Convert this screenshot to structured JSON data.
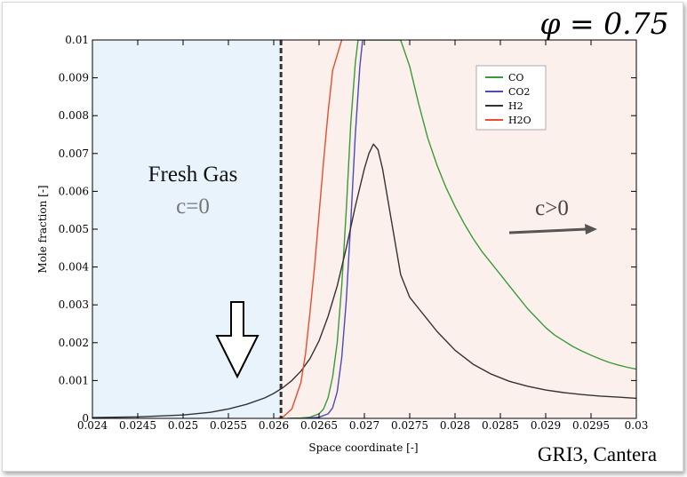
{
  "chart_data": {
    "type": "line",
    "title": "",
    "xlabel": "Space coordinate [-]",
    "ylabel": "Mole fraction [-]",
    "xlim": [
      0.024,
      0.03
    ],
    "ylim": [
      0,
      0.01
    ],
    "x_ticks": [
      "0.024",
      "0.0245",
      "0.025",
      "0.0255",
      "0.026",
      "0.0265",
      "0.027",
      "0.0275",
      "0.028",
      "0.0285",
      "0.029",
      "0.0295",
      "0.03"
    ],
    "y_ticks": [
      "0",
      "0.001",
      "0.002",
      "0.003",
      "0.004",
      "0.005",
      "0.006",
      "0.007",
      "0.008",
      "0.009",
      "0.01"
    ],
    "grid": false,
    "legend_position": "top-right",
    "series": [
      {
        "name": "CO",
        "color": "#3a9a3a",
        "x": [
          0.02615,
          0.0263,
          0.0264,
          0.0265,
          0.02655,
          0.0266,
          0.02665,
          0.0267,
          0.02675,
          0.0268,
          0.02685,
          0.0269,
          0.02693,
          0.0274,
          0.0275,
          0.0276,
          0.0277,
          0.0278,
          0.0279,
          0.028,
          0.0281,
          0.0282,
          0.0283,
          0.0284,
          0.0285,
          0.0286,
          0.0287,
          0.0288,
          0.0289,
          0.029,
          0.0291,
          0.0292,
          0.0293,
          0.0294,
          0.0295,
          0.0296,
          0.0297,
          0.0298,
          0.0299,
          0.03
        ],
        "y": [
          0,
          1e-05,
          3e-05,
          0.00012,
          0.00025,
          0.00055,
          0.0011,
          0.002,
          0.0035,
          0.0055,
          0.0078,
          0.0094,
          0.01,
          0.01,
          0.0093,
          0.0083,
          0.0074,
          0.0067,
          0.0061,
          0.0056,
          0.00515,
          0.00475,
          0.0044,
          0.0041,
          0.0038,
          0.0035,
          0.0032,
          0.0029,
          0.00265,
          0.0024,
          0.0022,
          0.00205,
          0.0019,
          0.00178,
          0.00167,
          0.00157,
          0.00148,
          0.00141,
          0.00135,
          0.0013
        ]
      },
      {
        "name": "CO2",
        "color": "#4a4ab8",
        "x": [
          0.02635,
          0.0265,
          0.0266,
          0.02665,
          0.0267,
          0.02675,
          0.0268,
          0.02685,
          0.0269,
          0.02695,
          0.02698
        ],
        "y": [
          0,
          3e-05,
          0.00012,
          0.00028,
          0.0007,
          0.0016,
          0.0031,
          0.0052,
          0.0075,
          0.0093,
          0.01
        ]
      },
      {
        "name": "H2",
        "color": "#333333",
        "x": [
          0.024,
          0.0245,
          0.025,
          0.0253,
          0.0255,
          0.0257,
          0.0259,
          0.026,
          0.0261,
          0.0262,
          0.0263,
          0.0264,
          0.0265,
          0.0266,
          0.0267,
          0.0268,
          0.0269,
          0.027,
          0.02705,
          0.0271,
          0.02715,
          0.0272,
          0.0273,
          0.0274,
          0.0275,
          0.0276,
          0.0277,
          0.0278,
          0.028,
          0.0282,
          0.0284,
          0.0286,
          0.0288,
          0.029,
          0.0292,
          0.0294,
          0.0296,
          0.0298,
          0.03
        ],
        "y": [
          2e-05,
          4e-05,
          9e-05,
          0.00016,
          0.00025,
          0.00037,
          0.00054,
          0.00066,
          0.00081,
          0.001,
          0.00125,
          0.00158,
          0.00205,
          0.0027,
          0.0035,
          0.0045,
          0.0056,
          0.0066,
          0.007,
          0.00725,
          0.0071,
          0.0066,
          0.0052,
          0.0038,
          0.0032,
          0.0029,
          0.0026,
          0.0023,
          0.0018,
          0.00143,
          0.00117,
          0.00098,
          0.00085,
          0.00075,
          0.00068,
          0.00063,
          0.00059,
          0.00056,
          0.00053
        ]
      },
      {
        "name": "H2O",
        "color": "#e84d2e",
        "x": [
          0.02605,
          0.0261,
          0.0262,
          0.0263,
          0.02635,
          0.0264,
          0.02645,
          0.0265,
          0.02655,
          0.0266,
          0.02665,
          0.02675
        ],
        "y": [
          0,
          3e-05,
          0.00025,
          0.00095,
          0.0017,
          0.0028,
          0.004,
          0.0054,
          0.0068,
          0.0081,
          0.0092,
          0.01
        ]
      }
    ],
    "annotations": {
      "fresh_gas": "Fresh Gas",
      "c_zero": "c=0",
      "c_positive": "c>0",
      "credit": "GRI3, Cantera",
      "phi": "φ = 0.75"
    },
    "regions": [
      {
        "name": "fresh-gas-region",
        "from": 0.024,
        "to": 0.02608,
        "color": "#e8f3fb"
      },
      {
        "name": "reacting-region",
        "from": 0.02608,
        "to": 0.03,
        "color": "#fcf0ec"
      }
    ],
    "boundary_x": 0.02608
  }
}
